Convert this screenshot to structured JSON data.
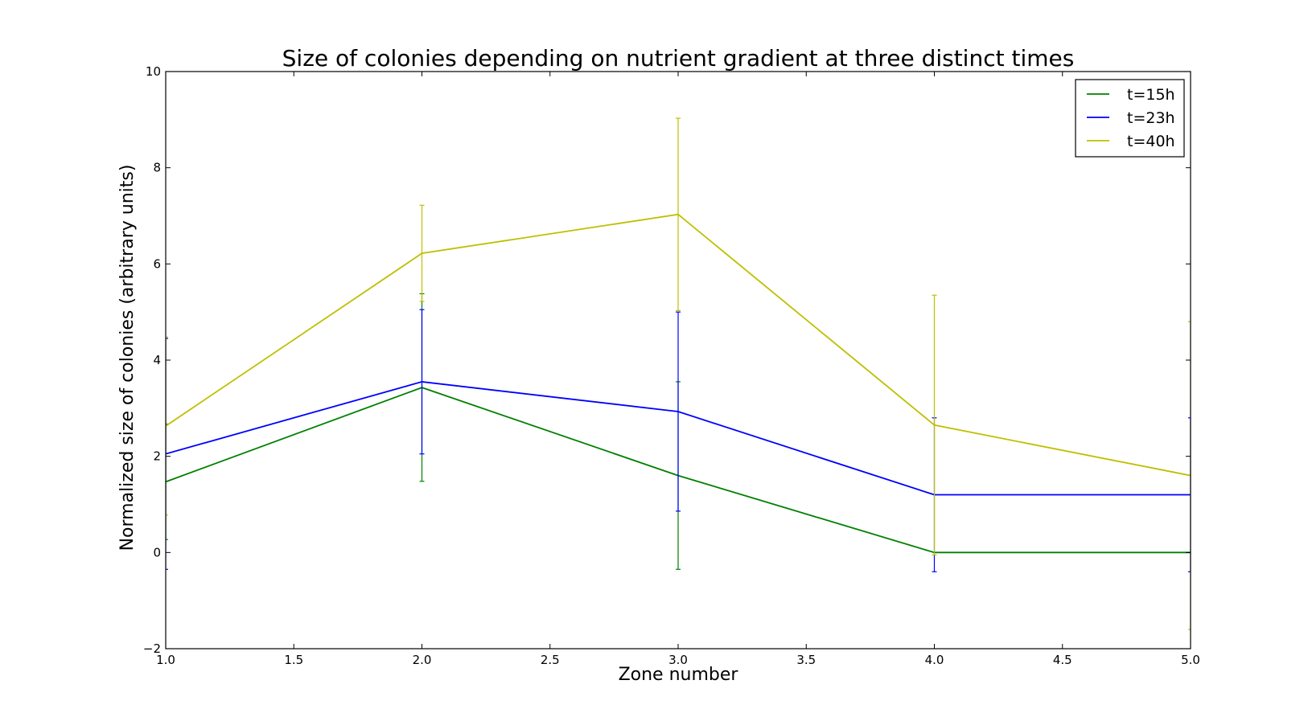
{
  "chart_data": {
    "type": "line",
    "title": "Size of colonies depending on nutrient gradient at three distinct times",
    "xlabel": "Zone number",
    "ylabel": "Normalized size of colonies (arbitrary units)",
    "xlim": [
      1.0,
      5.0
    ],
    "ylim": [
      -2,
      10
    ],
    "xticks": [
      "1.0",
      "1.5",
      "2.0",
      "2.5",
      "3.0",
      "3.5",
      "4.0",
      "4.5",
      "5.0"
    ],
    "yticks": [
      "−2",
      "0",
      "2",
      "4",
      "6",
      "8",
      "10"
    ],
    "grid": false,
    "legend_position": "top-right",
    "x": [
      1,
      2,
      3,
      4,
      5
    ],
    "series": [
      {
        "name": "t=15h",
        "color": "#008000",
        "values": [
          1.47,
          3.43,
          1.6,
          0.0,
          0.0
        ],
        "errors": [
          1.2,
          1.95,
          1.95,
          0.0,
          0.0
        ]
      },
      {
        "name": "t=23h",
        "color": "#0000ff",
        "values": [
          2.05,
          3.55,
          2.93,
          1.2,
          1.2
        ],
        "errors": [
          2.4,
          1.5,
          2.07,
          1.6,
          1.6
        ]
      },
      {
        "name": "t=40h",
        "color": "#bfbf00",
        "values": [
          2.63,
          6.22,
          7.03,
          2.65,
          1.6
        ],
        "errors": [
          1.85,
          1.0,
          2.0,
          2.7,
          3.2
        ]
      }
    ]
  }
}
